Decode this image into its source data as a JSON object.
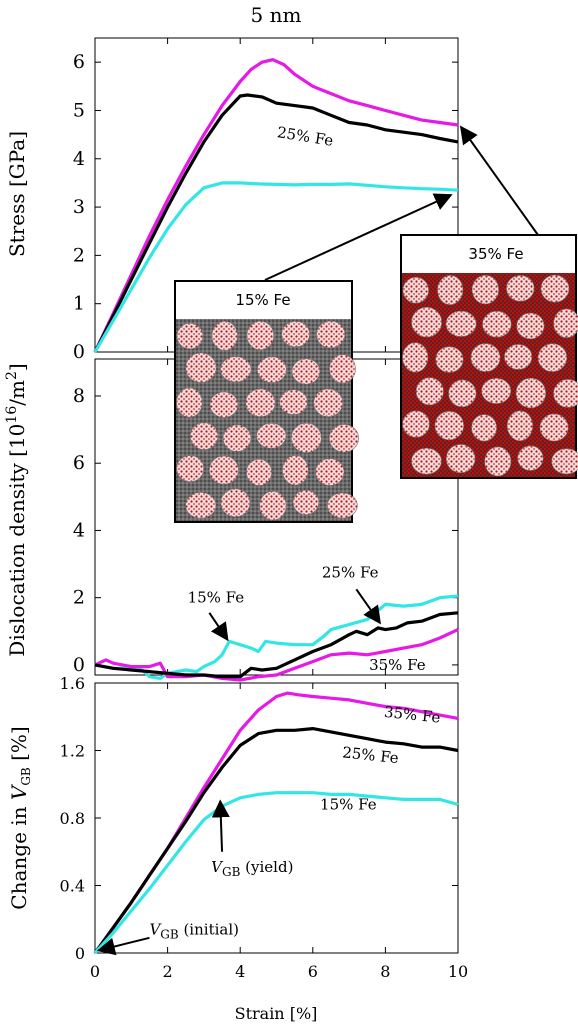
{
  "figure": {
    "title": "5 nm",
    "xlabel": "Strain [%]"
  },
  "colors": {
    "p15": "#33e6e6",
    "p25": "#000000",
    "p35": "#e619e6",
    "atom_red": "#b01515",
    "atom_gray": "#555555"
  },
  "insets": {
    "fe15": {
      "label": "15% Fe"
    },
    "fe35": {
      "label": "35% Fe"
    }
  },
  "chart_data": [
    {
      "type": "line",
      "title": "5 nm",
      "xlabel": "",
      "ylabel": "Stress [GPa]",
      "xlim": [
        0,
        10
      ],
      "ylim": [
        0,
        6.5
      ],
      "xticks": [
        "0",
        "2",
        "4",
        "6",
        "8",
        "10"
      ],
      "yticks": [
        "0",
        "1",
        "2",
        "3",
        "4",
        "5",
        "6"
      ],
      "ytick_values": [
        0,
        1,
        2,
        3,
        4,
        5,
        6
      ],
      "series": [
        {
          "key": "p35",
          "x": [
            0,
            0.5,
            1,
            1.5,
            2,
            2.5,
            3,
            3.5,
            4,
            4.3,
            4.6,
            4.9,
            5.2,
            5.5,
            6,
            6.5,
            7,
            7.5,
            8,
            8.5,
            9,
            9.5,
            10
          ],
          "y": [
            0,
            0.8,
            1.6,
            2.4,
            3.15,
            3.85,
            4.5,
            5.1,
            5.6,
            5.85,
            6.0,
            6.05,
            5.95,
            5.75,
            5.5,
            5.35,
            5.2,
            5.1,
            5.0,
            4.9,
            4.8,
            4.75,
            4.7
          ]
        },
        {
          "key": "p25",
          "x": [
            0,
            0.5,
            1,
            1.5,
            2,
            2.5,
            3,
            3.5,
            4,
            4.2,
            4.6,
            5,
            5.5,
            6,
            6.5,
            7,
            7.5,
            8,
            8.5,
            9,
            9.5,
            10
          ],
          "y": [
            0,
            0.75,
            1.5,
            2.25,
            3.0,
            3.7,
            4.35,
            4.9,
            5.3,
            5.32,
            5.28,
            5.15,
            5.1,
            5.05,
            4.9,
            4.75,
            4.7,
            4.6,
            4.55,
            4.5,
            4.42,
            4.35
          ]
        },
        {
          "key": "p15",
          "x": [
            0,
            0.5,
            1,
            1.5,
            2,
            2.5,
            3,
            3.5,
            4,
            4.5,
            5,
            5.5,
            6,
            6.5,
            7,
            7.5,
            8,
            8.5,
            9,
            9.5,
            10
          ],
          "y": [
            0,
            0.65,
            1.3,
            1.95,
            2.55,
            3.05,
            3.4,
            3.5,
            3.5,
            3.48,
            3.47,
            3.46,
            3.47,
            3.47,
            3.48,
            3.45,
            3.42,
            3.4,
            3.38,
            3.37,
            3.35
          ]
        }
      ],
      "annotations": [
        {
          "text": "25% Fe",
          "x": 5.0,
          "y": 4.45,
          "rotate": 9
        }
      ]
    },
    {
      "type": "line",
      "xlabel": "",
      "ylabel": "Dislocation density [10",
      "ylabel_sup": "16",
      "ylabel_tail": "/m",
      "ylabel_sup2": "2",
      "ylabel_close": "]",
      "xlim": [
        0,
        10
      ],
      "ylim": [
        -0.3,
        9.1
      ],
      "yticks": [
        "0",
        "2",
        "4",
        "6",
        "8"
      ],
      "ytick_values": [
        0,
        2,
        4,
        6,
        8
      ],
      "series": [
        {
          "key": "p15",
          "x": [
            0,
            0.5,
            1,
            1.3,
            1.5,
            1.8,
            2,
            2.5,
            2.8,
            3,
            3.3,
            3.5,
            3.7,
            4,
            4.3,
            4.5,
            4.7,
            5,
            5.5,
            6,
            6.3,
            6.5,
            7,
            7.5,
            8,
            8.5,
            9,
            9.5,
            10
          ],
          "y": [
            0,
            -0.1,
            -0.1,
            -0.15,
            -0.35,
            -0.4,
            -0.25,
            -0.15,
            -0.2,
            -0.05,
            0.1,
            0.3,
            0.7,
            0.6,
            0.5,
            0.4,
            0.7,
            0.65,
            0.6,
            0.6,
            0.85,
            1.05,
            1.2,
            1.35,
            1.8,
            1.75,
            1.8,
            2.0,
            2.05
          ]
        },
        {
          "key": "p35",
          "x": [
            0,
            0.3,
            0.5,
            1,
            1.5,
            1.8,
            2,
            2.5,
            3,
            3.5,
            4,
            4.5,
            5,
            5.5,
            6,
            6.5,
            7,
            7.5,
            8,
            8.5,
            9,
            9.5,
            10
          ],
          "y": [
            0,
            0.15,
            0.05,
            -0.05,
            -0.05,
            0.05,
            -0.35,
            -0.35,
            -0.3,
            -0.4,
            -0.45,
            -0.35,
            -0.3,
            -0.1,
            0.1,
            0.3,
            0.35,
            0.3,
            0.4,
            0.5,
            0.6,
            0.8,
            1.05
          ]
        },
        {
          "key": "p25",
          "x": [
            0,
            0.5,
            1,
            1.5,
            2,
            2.5,
            3,
            3.5,
            4,
            4.3,
            4.6,
            5,
            5.5,
            6,
            6.5,
            7,
            7.2,
            7.5,
            7.8,
            8,
            8.3,
            8.6,
            9,
            9.5,
            10
          ],
          "y": [
            0,
            -0.1,
            -0.15,
            -0.2,
            -0.25,
            -0.3,
            -0.3,
            -0.35,
            -0.35,
            -0.1,
            -0.15,
            -0.1,
            0.15,
            0.4,
            0.6,
            0.9,
            1.0,
            0.9,
            1.1,
            1.05,
            1.1,
            1.25,
            1.3,
            1.5,
            1.55
          ]
        }
      ],
      "annotations": [
        {
          "text": "15% Fe",
          "x": 2.55,
          "y": 1.85
        },
        {
          "text": "25% Fe",
          "x": 6.25,
          "y": 2.6
        },
        {
          "text": "35% Fe",
          "x": 7.55,
          "y": -0.15
        }
      ]
    },
    {
      "type": "line",
      "xlabel": "Strain [%]",
      "ylabel": "Change in ",
      "ylabel_var": "V",
      "ylabel_sub": "GB",
      "ylabel_tail": "  [%]",
      "xlim": [
        0,
        10
      ],
      "ylim": [
        0,
        1.6
      ],
      "xticks": [
        "0",
        "2",
        "4",
        "6",
        "8",
        "10"
      ],
      "yticks": [
        "0",
        "0.4",
        "0.8",
        "1.2",
        "1.6"
      ],
      "ytick_values": [
        0,
        0.4,
        0.8,
        1.2,
        1.6
      ],
      "series": [
        {
          "key": "p35",
          "x": [
            0,
            0.5,
            1,
            1.5,
            2,
            2.5,
            3,
            3.5,
            4,
            4.5,
            5,
            5.3,
            5.6,
            6,
            6.5,
            7,
            7.5,
            8,
            8.5,
            9,
            9.5,
            10
          ],
          "y": [
            0,
            0.15,
            0.3,
            0.46,
            0.62,
            0.8,
            0.98,
            1.15,
            1.32,
            1.44,
            1.52,
            1.54,
            1.53,
            1.52,
            1.51,
            1.5,
            1.48,
            1.46,
            1.45,
            1.43,
            1.41,
            1.39
          ]
        },
        {
          "key": "p25",
          "x": [
            0,
            0.5,
            1,
            1.5,
            2,
            2.5,
            3,
            3.5,
            4,
            4.5,
            5,
            5.5,
            6,
            6.5,
            7,
            7.5,
            8,
            8.5,
            9,
            9.5,
            10
          ],
          "y": [
            0,
            0.15,
            0.3,
            0.46,
            0.62,
            0.78,
            0.95,
            1.1,
            1.23,
            1.3,
            1.32,
            1.32,
            1.33,
            1.31,
            1.29,
            1.27,
            1.25,
            1.24,
            1.22,
            1.22,
            1.2
          ]
        },
        {
          "key": "p15",
          "x": [
            0,
            0.5,
            1,
            1.5,
            2,
            2.5,
            3,
            3.5,
            4,
            4.5,
            5,
            5.5,
            6,
            6.5,
            7,
            7.5,
            8,
            8.5,
            9,
            9.5,
            10
          ],
          "y": [
            0,
            0.12,
            0.25,
            0.38,
            0.52,
            0.66,
            0.79,
            0.87,
            0.92,
            0.94,
            0.95,
            0.95,
            0.95,
            0.94,
            0.94,
            0.93,
            0.92,
            0.91,
            0.91,
            0.91,
            0.88
          ]
        }
      ],
      "annotations": [
        {
          "text": "35% Fe",
          "x": 7.95,
          "y": 1.4,
          "rotate": 6
        },
        {
          "text": "25% Fe",
          "x": 6.8,
          "y": 1.16,
          "rotate": 6
        },
        {
          "text": "15% Fe",
          "x": 6.2,
          "y": 0.85
        }
      ],
      "markers": [
        {
          "var": "V",
          "sub": "GB",
          "tail": " (yield)",
          "x": 3.2,
          "y": 0.48
        },
        {
          "var": "V",
          "sub": "GB",
          "tail": " (initial)",
          "x": 1.5,
          "y": 0.11
        }
      ]
    }
  ]
}
